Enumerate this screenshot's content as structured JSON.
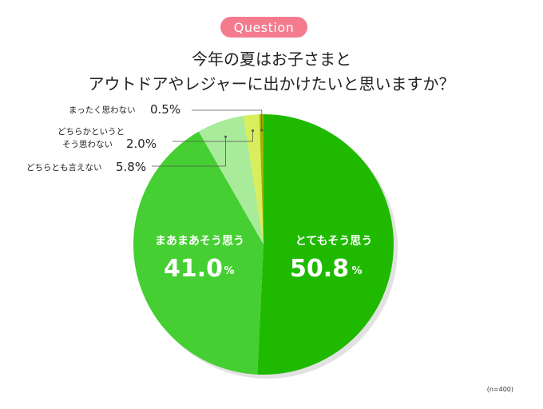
{
  "badge": "Question",
  "title_line1": "今年の夏はお子さまと",
  "title_line2": "アウトドアやレジャーに出かけたいと思いますか？",
  "sample": "(n=400)",
  "chart_data": {
    "type": "pie",
    "slices": [
      {
        "label": "とてもそう思う",
        "value": 50.8,
        "value_text": "50.8",
        "unit": "%",
        "color": "#1fba00"
      },
      {
        "label": "まあまあそう思う",
        "value": 41.0,
        "value_text": "41.0",
        "unit": "%",
        "color": "#45cf32"
      },
      {
        "label": "どちらとも言えない",
        "value": 5.8,
        "value_text": "5.8%",
        "color": "#a8eb9a"
      },
      {
        "label_lines": [
          "どちらかというと",
          "そう思わない"
        ],
        "value": 2.0,
        "value_text": "2.0%",
        "color": "#d8ee5c"
      },
      {
        "label": "まったく思わない",
        "value": 0.5,
        "value_text": "0.5%",
        "color": "#a4b100"
      }
    ]
  }
}
